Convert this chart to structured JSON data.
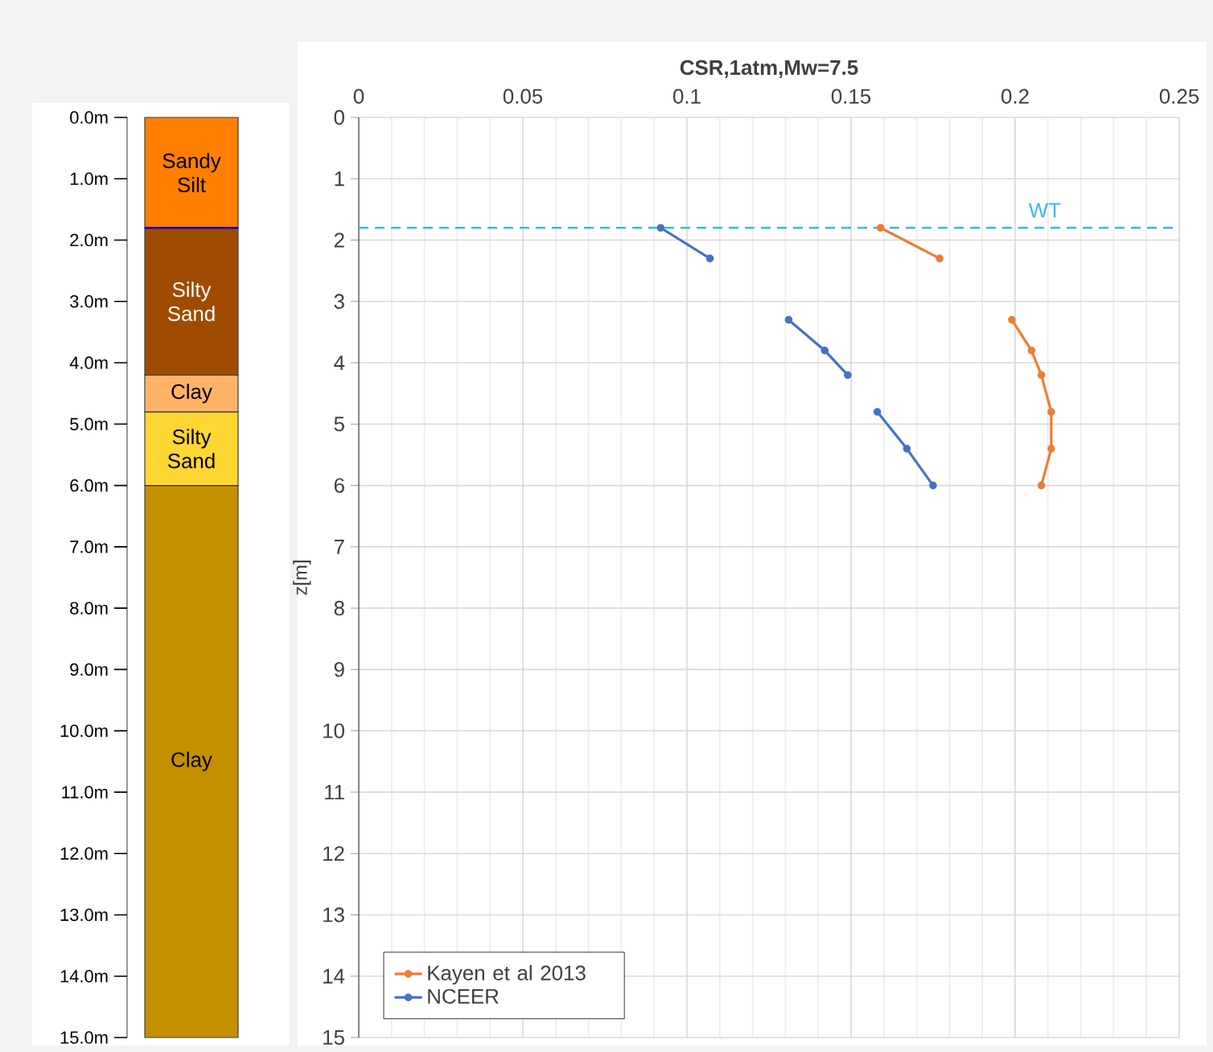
{
  "chart_data": [
    {
      "type": "bar",
      "stacked": true,
      "categories": [
        null
      ],
      "series": [
        {
          "name": "Sandy Silt",
          "color": "#ff7f00",
          "values": [
            1.8
          ]
        },
        {
          "name": "Silty Sand",
          "color": "#a04c00",
          "values": [
            2.4
          ]
        },
        {
          "name": "Clay",
          "color": "#ffb366",
          "values": [
            0.6
          ]
        },
        {
          "name": "Silty Sand",
          "color": "#ffd633",
          "values": [
            1.2
          ]
        },
        {
          "name": "Clay",
          "color": "#c49000",
          "values": [
            9
          ]
        }
      ],
      "ylim": [
        15,
        0
      ],
      "yticks": [
        {
          "value": 0,
          "label": "0.0m"
        },
        {
          "value": 1,
          "label": "1.0m"
        },
        {
          "value": 2,
          "label": "2.0m"
        },
        {
          "value": 3,
          "label": "3.0m"
        },
        {
          "value": 4,
          "label": "4.0m"
        },
        {
          "value": 5,
          "label": "5.0m"
        },
        {
          "value": 6,
          "label": "6.0m"
        },
        {
          "value": 7,
          "label": "7.0m"
        },
        {
          "value": 8,
          "label": "8.0m"
        },
        {
          "value": 9,
          "label": "9.0m"
        },
        {
          "value": 10,
          "label": "10.0m"
        },
        {
          "value": 11,
          "label": "11.0m"
        },
        {
          "value": 12,
          "label": "12.0m"
        },
        {
          "value": 13,
          "label": "13.0m"
        },
        {
          "value": 14,
          "label": "14.0m"
        },
        {
          "value": 15,
          "label": "15.0m"
        }
      ],
      "ref_lines": [
        {
          "axis": "y",
          "value": 1.8,
          "color": "#0000cc",
          "line_style": "solid"
        }
      ],
      "tick_labels": "y",
      "legend": false
    },
    {
      "type": "line",
      "xlabel": "CSR,1atm,Mw=7.5",
      "ylabel": "z[m]",
      "xlim": [
        0,
        0.25
      ],
      "xticks": [
        0,
        0.05,
        0.1,
        0.15,
        0.2,
        0.25
      ],
      "ylim": [
        15,
        0
      ],
      "yticks": [
        0,
        1,
        2,
        3,
        4,
        5,
        6,
        7,
        8,
        9,
        10,
        11,
        12,
        13,
        14,
        15
      ],
      "grid": true,
      "legend": "bottom left",
      "marker": "circle",
      "line_style": "solid",
      "series": [
        {
          "name": "Kayen et al 2013",
          "color": "#ed7d31",
          "x": [
            0.159,
            0.177,
            null,
            0.199,
            0.205,
            0.208,
            0.211,
            0.211,
            0.208
          ],
          "values": [
            1.8,
            2.3,
            null,
            3.3,
            3.8,
            4.2,
            4.8,
            5.4,
            6.0
          ]
        },
        {
          "name": "NCEER",
          "color": "#4472c4",
          "x": [
            0.092,
            0.107,
            null,
            0.131,
            0.142,
            0.149,
            null,
            0.158,
            0.167,
            0.175
          ],
          "values": [
            1.8,
            2.3,
            null,
            3.3,
            3.8,
            4.2,
            null,
            4.8,
            5.4,
            6.0
          ]
        }
      ],
      "ref_lines": [
        {
          "axis": "y",
          "value": 1.8,
          "label": "WT",
          "color": "#33bbee",
          "line_style": "dashed"
        }
      ]
    }
  ]
}
